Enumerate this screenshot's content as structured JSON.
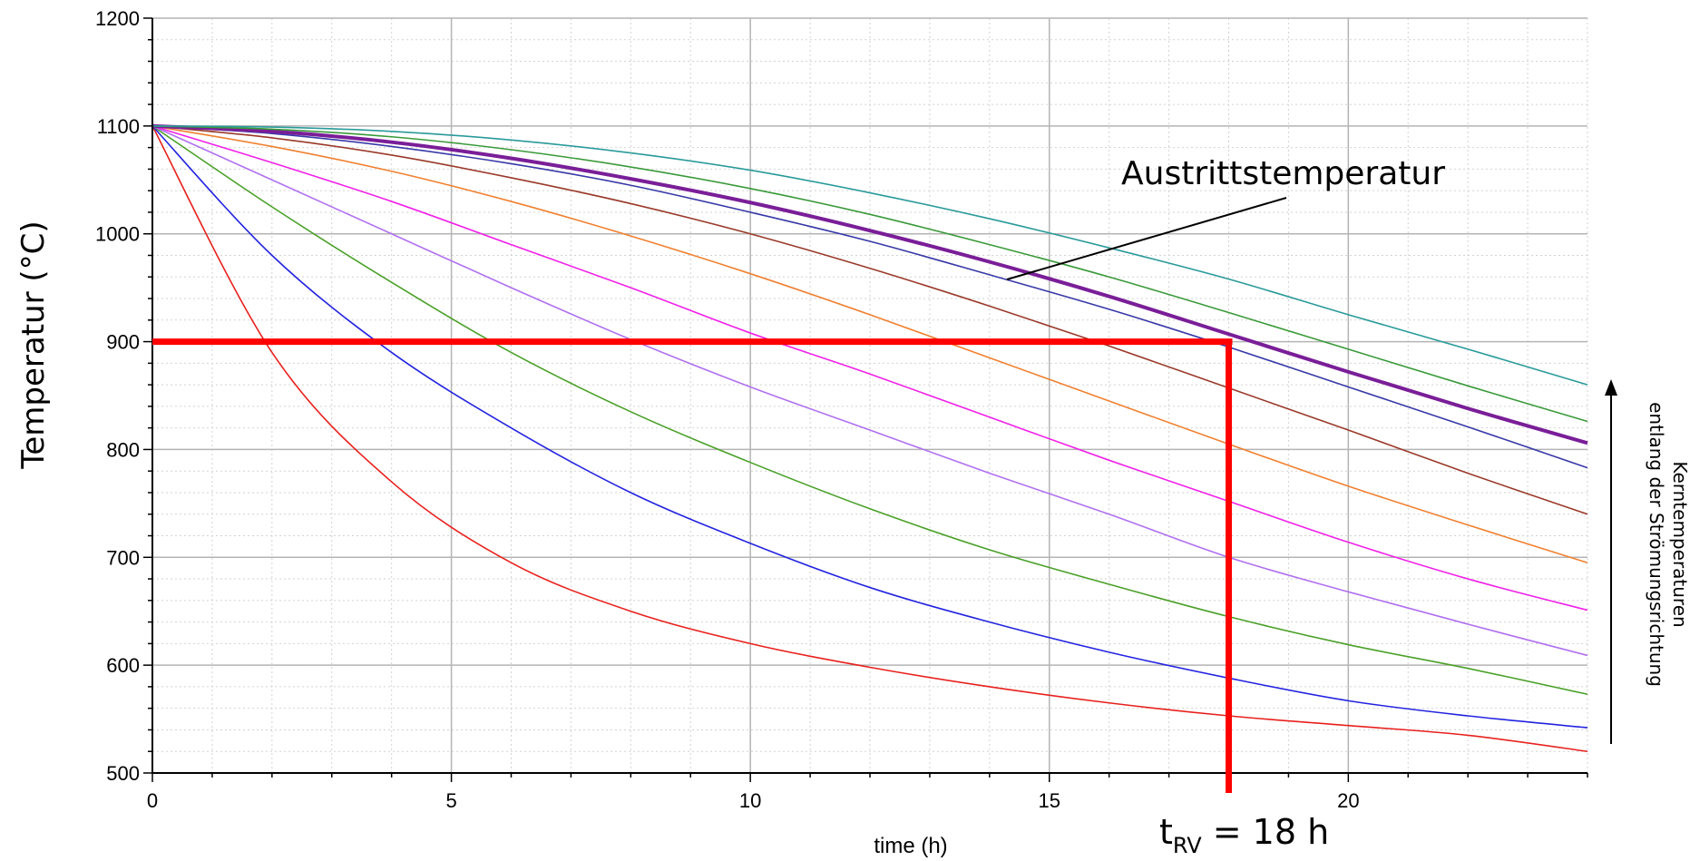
{
  "chart_data": {
    "type": "line",
    "xlabel": "time (h)",
    "ylabel": "Temperatur (°C)",
    "xlim": [
      0,
      24
    ],
    "ylim": [
      500,
      1200
    ],
    "xticks": [
      0,
      5,
      10,
      15,
      20
    ],
    "yticks": [
      500,
      600,
      700,
      800,
      900,
      1000,
      1100,
      1200
    ],
    "grid": true,
    "x": [
      0,
      2,
      4,
      6,
      8,
      10,
      12,
      14,
      16,
      18,
      20,
      22,
      24
    ],
    "series": [
      {
        "color": "#e8201c",
        "width": 1.6,
        "values": [
          1100,
          890,
          770,
          695,
          650,
          620,
          598,
          580,
          565,
          553,
          544,
          535,
          520
        ]
      },
      {
        "color": "#2323e0",
        "width": 1.6,
        "values": [
          1100,
          980,
          890,
          820,
          760,
          713,
          672,
          640,
          612,
          588,
          567,
          553,
          542
        ]
      },
      {
        "color": "#4aa028",
        "width": 1.6,
        "values": [
          1100,
          1025,
          955,
          890,
          835,
          788,
          745,
          707,
          675,
          645,
          619,
          597,
          573
        ]
      },
      {
        "color": "#b070f0",
        "width": 1.6,
        "values": [
          1100,
          1050,
          1000,
          950,
          902,
          858,
          818,
          778,
          740,
          700,
          668,
          638,
          609
        ]
      },
      {
        "color": "#f020e8",
        "width": 1.6,
        "values": [
          1100,
          1066,
          1030,
          990,
          950,
          908,
          870,
          830,
          790,
          752,
          714,
          680,
          651
        ]
      },
      {
        "color": "#f08030",
        "width": 1.6,
        "values": [
          1100,
          1081,
          1058,
          1030,
          998,
          963,
          925,
          885,
          845,
          805,
          766,
          730,
          695
        ]
      },
      {
        "color": "#9a3a2a",
        "width": 1.6,
        "values": [
          1100,
          1089,
          1073,
          1052,
          1028,
          1000,
          968,
          933,
          896,
          857,
          818,
          778,
          740
        ]
      },
      {
        "color": "#3838a8",
        "width": 1.6,
        "values": [
          1100,
          1093,
          1081,
          1065,
          1045,
          1020,
          993,
          962,
          930,
          895,
          858,
          821,
          783
        ]
      },
      {
        "color": "#7a1e98",
        "width": 4.0,
        "values": [
          1100,
          1095,
          1085,
          1070,
          1051,
          1029,
          1003,
          974,
          942,
          907,
          872,
          838,
          806
        ]
      },
      {
        "color": "#3a9a3a",
        "width": 1.6,
        "values": [
          1100,
          1097,
          1090,
          1078,
          1062,
          1042,
          1018,
          990,
          960,
          927,
          893,
          859,
          826
        ]
      },
      {
        "color": "#2a9a9a",
        "width": 1.6,
        "values": [
          1100,
          1099,
          1095,
          1087,
          1075,
          1059,
          1038,
          1014,
          987,
          958,
          925,
          893,
          860
        ]
      }
    ],
    "annotations": {
      "exit_label": "Austrittstemperatur",
      "side_label_line1": "Kerntemperaturen",
      "side_label_line2": "entlang der Strömungsrichtung",
      "trv_main": "t",
      "trv_sub": "RV",
      "trv_rest": " = 18 h",
      "marker": {
        "x": 18,
        "y": 900,
        "color": "#ff0000"
      }
    }
  }
}
